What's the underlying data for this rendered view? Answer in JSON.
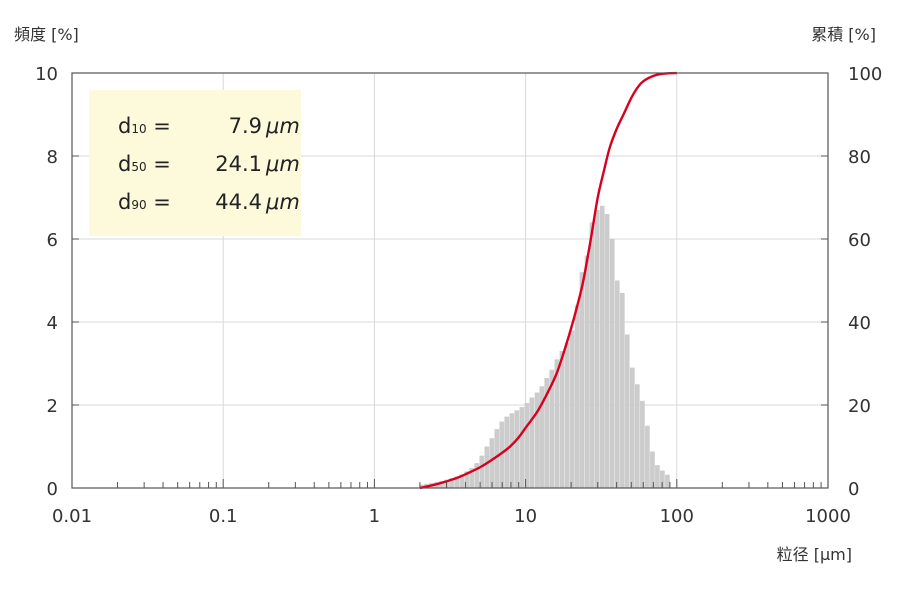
{
  "chart_data": {
    "type": "bar",
    "title": "",
    "y_left_label": "頻度 [%]",
    "y_right_label": "累積 [%]",
    "xlabel": "粒径 [μm]",
    "x_scale": "log",
    "xlim": [
      0.01,
      1000
    ],
    "ylim_left": [
      0,
      10
    ],
    "ylim_right": [
      0,
      100
    ],
    "x_ticks": [
      {
        "value": 0.01,
        "label": "0.01"
      },
      {
        "value": 0.1,
        "label": "0.1"
      },
      {
        "value": 1,
        "label": "1"
      },
      {
        "value": 10,
        "label": "10"
      },
      {
        "value": 100,
        "label": "100"
      },
      {
        "value": 1000,
        "label": "1000"
      }
    ],
    "y_left_ticks": [
      {
        "value": 0,
        "label": "0"
      },
      {
        "value": 2,
        "label": "2"
      },
      {
        "value": 4,
        "label": "4"
      },
      {
        "value": 6,
        "label": "6"
      },
      {
        "value": 8,
        "label": "8"
      },
      {
        "value": 10,
        "label": "10"
      }
    ],
    "y_right_ticks": [
      {
        "value": 0,
        "label": "0"
      },
      {
        "value": 20,
        "label": "20"
      },
      {
        "value": 40,
        "label": "40"
      },
      {
        "value": 60,
        "label": "60"
      },
      {
        "value": 80,
        "label": "80"
      },
      {
        "value": 100,
        "label": "100"
      }
    ],
    "grid": true,
    "stats": [
      {
        "label": "d",
        "sub": "10",
        "value": "7.9",
        "unit": "μm"
      },
      {
        "label": "d",
        "sub": "50",
        "value": "24.1",
        "unit": "μm"
      },
      {
        "label": "d",
        "sub": "90",
        "value": "44.4",
        "unit": "μm"
      }
    ],
    "colors": {
      "bars": "#cccccc",
      "cumulative": "#d7001f",
      "stats_box": "#fdfadb",
      "grid": "#d9d9d9",
      "frame": "#555555"
    },
    "series": [
      {
        "type": "bar",
        "axis": "left",
        "x": [
          2.05,
          2.21,
          2.39,
          2.58,
          2.78,
          3.0,
          3.24,
          3.5,
          3.78,
          4.08,
          4.4,
          4.75,
          5.13,
          5.54,
          5.98,
          6.45,
          6.96,
          7.51,
          8.11,
          8.75,
          9.45,
          10.2,
          11.0,
          11.9,
          12.8,
          13.8,
          14.9,
          16.1,
          17.4,
          18.8,
          20.3,
          21.9,
          23.6,
          25.5,
          27.5,
          29.7,
          32.1,
          34.6,
          37.4,
          40.4,
          43.6,
          47.0,
          50.8,
          54.8,
          59.2,
          63.9,
          69.0,
          74.4,
          80.3,
          86.7
        ],
        "values": [
          0.08,
          0.1,
          0.12,
          0.14,
          0.17,
          0.2,
          0.24,
          0.28,
          0.33,
          0.4,
          0.48,
          0.6,
          0.78,
          1.0,
          1.2,
          1.42,
          1.6,
          1.72,
          1.8,
          1.87,
          1.95,
          2.05,
          2.18,
          2.3,
          2.45,
          2.65,
          2.85,
          3.1,
          3.3,
          3.5,
          3.8,
          4.4,
          5.2,
          5.6,
          6.4,
          6.7,
          6.8,
          6.6,
          6.0,
          5.0,
          4.7,
          3.7,
          2.9,
          2.5,
          2.1,
          1.5,
          0.88,
          0.55,
          0.42,
          0.32
        ]
      },
      {
        "type": "line",
        "axis": "right",
        "x": [
          2.0,
          2.5,
          3.0,
          3.5,
          4.0,
          5.0,
          6.0,
          7.0,
          7.9,
          9.0,
          10.0,
          12.0,
          14.0,
          16.0,
          18.0,
          20.0,
          22.0,
          24.1,
          27.0,
          30.0,
          33.0,
          36.0,
          40.0,
          44.4,
          50.0,
          55.0,
          60.0,
          70.0,
          80.0,
          90.0,
          100.0
        ],
        "values": [
          0.0,
          0.8,
          1.6,
          2.4,
          3.3,
          5.0,
          6.8,
          8.5,
          10.0,
          12.2,
          14.5,
          18.5,
          23.0,
          27.5,
          33.0,
          38.5,
          44.0,
          50.0,
          60.0,
          70.0,
          76.5,
          82.0,
          86.5,
          90.0,
          94.0,
          96.5,
          98.0,
          99.3,
          99.8,
          99.95,
          100.0
        ]
      }
    ]
  }
}
